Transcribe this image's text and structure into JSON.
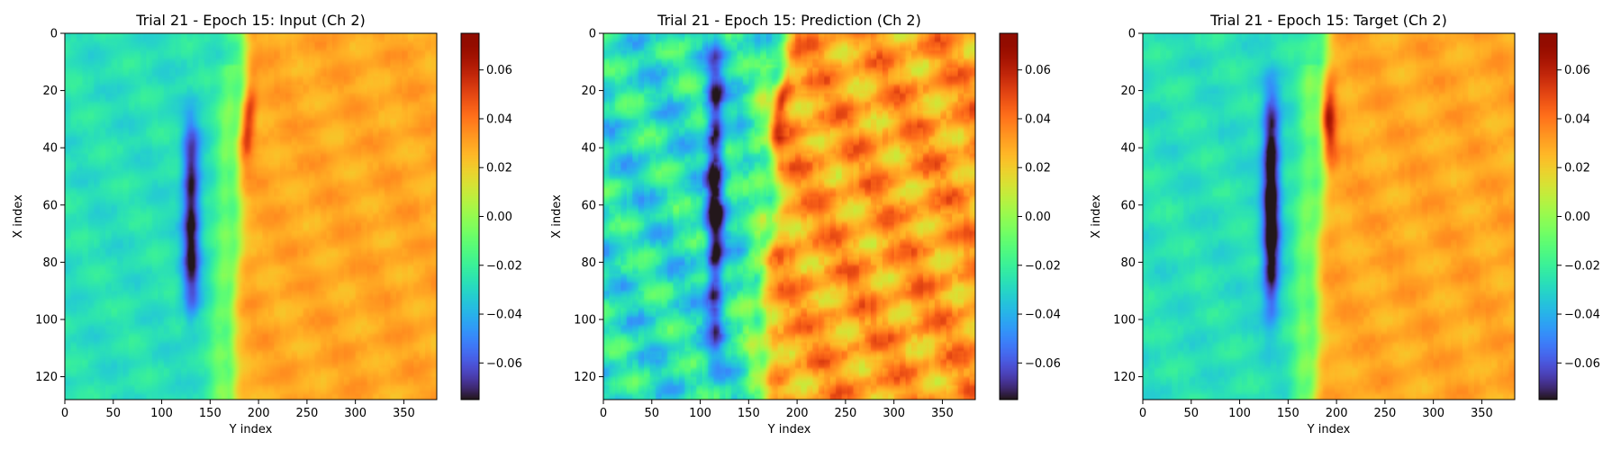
{
  "chart_data": [
    {
      "type": "heatmap",
      "title": "Trial 21 - Epoch 15: Input (Ch 2)",
      "xlabel": "Y index",
      "ylabel": "X index",
      "xlim": [
        0,
        384
      ],
      "ylim": [
        128,
        0
      ],
      "xticks": [
        0,
        50,
        100,
        150,
        200,
        250,
        300,
        350
      ],
      "yticks": [
        0,
        20,
        40,
        60,
        80,
        100,
        120
      ],
      "colormap": "turbo",
      "colorbar": {
        "vmin": -0.075,
        "vmax": 0.075,
        "ticks": [
          0.06,
          0.04,
          0.02,
          0.0,
          -0.02,
          -0.04,
          -0.06
        ],
        "tick_labels": [
          "0.06",
          "0.04",
          "0.02",
          "0.00",
          "−0.02",
          "−0.04",
          "−0.06"
        ]
      },
      "field": {
        "left_value": -0.027,
        "right_value": 0.029,
        "front_y": 178,
        "front_tilt": -6,
        "front_wobble": 2,
        "blue_y": 130,
        "blue_depth": -0.05,
        "blue_x_range": [
          30,
          98
        ],
        "red_peak": 0.06,
        "red_x": 30,
        "noise": 0.003
      }
    },
    {
      "type": "heatmap",
      "title": "Trial 21 - Epoch 15: Prediction (Ch 2)",
      "xlabel": "Y index",
      "ylabel": "X index",
      "xlim": [
        0,
        384
      ],
      "ylim": [
        128,
        0
      ],
      "xticks": [
        0,
        50,
        100,
        150,
        200,
        250,
        300,
        350
      ],
      "yticks": [
        0,
        20,
        40,
        60,
        80,
        100,
        120
      ],
      "colormap": "turbo",
      "colorbar": {
        "vmin": -0.075,
        "vmax": 0.075,
        "ticks": [
          0.06,
          0.04,
          0.02,
          0.0,
          -0.02,
          -0.04,
          -0.06
        ],
        "tick_labels": [
          "0.06",
          "0.04",
          "0.02",
          "0.00",
          "−0.02",
          "−0.04",
          "−0.06"
        ]
      },
      "field": {
        "left_value": -0.027,
        "right_value": 0.031,
        "front_y": 172,
        "front_tilt": -10,
        "front_wobble": 6,
        "blue_y": 115,
        "blue_depth": -0.05,
        "blue_x_range": [
          5,
          110
        ],
        "red_peak": 0.055,
        "red_x": 25,
        "noise": 0.009
      }
    },
    {
      "type": "heatmap",
      "title": "Trial 21 - Epoch 15: Target (Ch 2)",
      "xlabel": "Y index",
      "ylabel": "X index",
      "xlim": [
        0,
        384
      ],
      "ylim": [
        128,
        0
      ],
      "xticks": [
        0,
        50,
        100,
        150,
        200,
        250,
        300,
        350
      ],
      "yticks": [
        0,
        20,
        40,
        60,
        80,
        100,
        120
      ],
      "colormap": "turbo",
      "colorbar": {
        "vmin": -0.075,
        "vmax": 0.075,
        "ticks": [
          0.06,
          0.04,
          0.02,
          0.0,
          -0.02,
          -0.04,
          -0.06
        ],
        "tick_labels": [
          "0.06",
          "0.04",
          "0.02",
          "0.00",
          "−0.02",
          "−0.04",
          "−0.06"
        ]
      },
      "field": {
        "left_value": -0.027,
        "right_value": 0.029,
        "front_y": 182,
        "front_tilt": -6,
        "front_wobble": 2,
        "blue_y": 132,
        "blue_depth": -0.06,
        "blue_x_range": [
          20,
          98
        ],
        "red_peak": 0.065,
        "red_x": 30,
        "noise": 0.003
      }
    }
  ]
}
